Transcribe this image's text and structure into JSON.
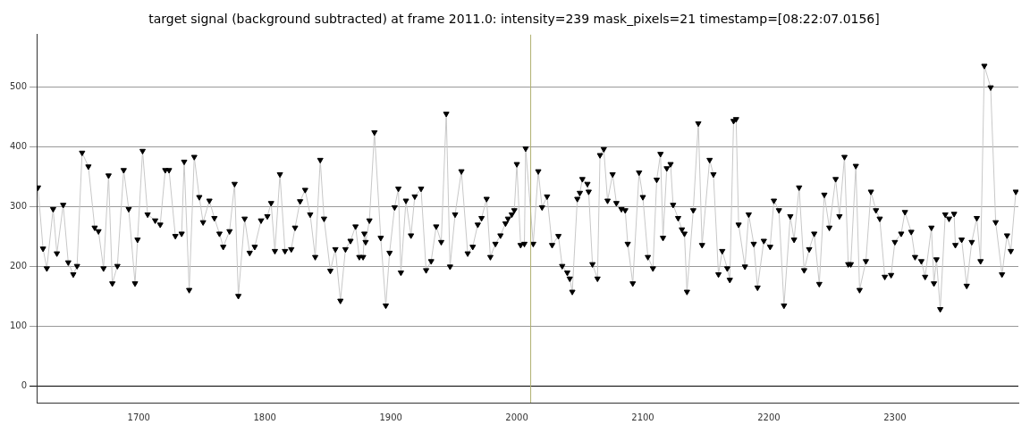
{
  "chart_data": {
    "type": "line",
    "title": "target signal (background subtracted) at frame 2011.0: intensity=239 mask_pixels=21 timestamp=[08:22:07.0156]",
    "x": [
      1620,
      1624,
      1627,
      1632,
      1635,
      1640,
      1644,
      1648,
      1651,
      1655,
      1660,
      1665,
      1668,
      1672,
      1676,
      1679,
      1683,
      1688,
      1692,
      1697,
      1699,
      1703,
      1707,
      1713,
      1717,
      1721,
      1724,
      1729,
      1734,
      1736,
      1740,
      1744,
      1748,
      1751,
      1756,
      1760,
      1764,
      1767,
      1772,
      1776,
      1779,
      1784,
      1788,
      1792,
      1797,
      1802,
      1805,
      1808,
      1812,
      1816,
      1821,
      1824,
      1828,
      1832,
      1836,
      1840,
      1844,
      1847,
      1852,
      1856,
      1860,
      1864,
      1868,
      1872,
      1875,
      1878,
      1879,
      1880,
      1883,
      1887,
      1892,
      1896,
      1899,
      1903,
      1906,
      1908,
      1912,
      1916,
      1919,
      1924,
      1928,
      1932,
      1936,
      1940,
      1944,
      1947,
      1951,
      1956,
      1961,
      1965,
      1969,
      1972,
      1976,
      1979,
      1983,
      1987,
      1991,
      1993,
      1996,
      1998,
      2000,
      2003,
      2006,
      2007,
      2013,
      2017,
      2020,
      2024,
      2028,
      2033,
      2036,
      2040,
      2042,
      2044,
      2048,
      2050,
      2052,
      2056,
      2057,
      2060,
      2064,
      2066,
      2069,
      2072,
      2076,
      2079,
      2083,
      2086,
      2088,
      2092,
      2097,
      2100,
      2104,
      2108,
      2111,
      2114,
      2116,
      2119,
      2122,
      2124,
      2128,
      2131,
      2133,
      2135,
      2140,
      2144,
      2147,
      2153,
      2156,
      2160,
      2163,
      2167,
      2169,
      2172,
      2174,
      2176,
      2181,
      2184,
      2188,
      2191,
      2196,
      2201,
      2204,
      2208,
      2212,
      2217,
      2220,
      2224,
      2228,
      2232,
      2236,
      2240,
      2244,
      2248,
      2253,
      2256,
      2260,
      2263,
      2265,
      2269,
      2272,
      2277,
      2281,
      2285,
      2288,
      2292,
      2297,
      2300,
      2305,
      2308,
      2313,
      2316,
      2321,
      2324,
      2329,
      2331,
      2333,
      2336,
      2340,
      2343,
      2347,
      2348,
      2353,
      2357,
      2361,
      2365,
      2368,
      2371,
      2376,
      2380,
      2385,
      2389,
      2392,
      2396
    ],
    "series": [
      {
        "color": "#000000",
        "values": [
          332,
          230,
          197,
          296,
          222,
          303,
          207,
          187,
          201,
          390,
          367,
          265,
          259,
          197,
          352,
          172,
          201,
          361,
          296,
          172,
          245,
          393,
          287,
          277,
          270,
          361,
          361,
          251,
          255,
          375,
          161,
          383,
          316,
          274,
          310,
          281,
          255,
          233,
          259,
          338,
          151,
          280,
          223,
          233,
          277,
          284,
          306,
          226,
          354,
          226,
          229,
          265,
          309,
          328,
          287,
          216,
          378,
          280,
          193,
          229,
          143,
          229,
          243,
          267,
          216,
          216,
          255,
          241,
          277,
          424,
          248,
          135,
          223,
          299,
          330,
          190,
          310,
          252,
          317,
          330,
          194,
          209,
          267,
          241,
          455,
          200,
          287,
          359,
          222,
          233,
          270,
          281,
          313,
          216,
          238,
          252,
          272,
          280,
          287,
          294,
          371,
          236,
          238,
          397,
          238,
          359,
          299,
          317,
          236,
          251,
          201,
          190,
          180,
          158,
          313,
          323,
          346,
          338,
          325,
          204,
          180,
          386,
          396,
          310,
          354,
          306,
          296,
          294,
          238,
          172,
          357,
          316,
          216,
          197,
          345,
          388,
          248,
          364,
          371,
          303,
          281,
          262,
          255,
          158,
          294,
          439,
          236,
          378,
          354,
          187,
          226,
          197,
          178,
          443,
          446,
          270,
          200,
          287,
          238,
          165,
          243,
          233,
          310,
          294,
          135,
          284,
          245,
          332,
          194,
          229,
          255,
          171,
          320,
          265,
          346,
          284,
          383,
          204,
          204,
          368,
          161,
          209,
          325,
          294,
          280,
          183,
          186,
          241,
          255,
          291,
          258,
          216,
          209,
          183,
          265,
          172,
          212,
          129,
          287,
          280,
          288,
          236,
          245,
          168,
          241,
          281,
          209,
          535,
          499,
          274,
          187,
          252,
          226,
          325
        ]
      }
    ],
    "xlim": [
      1619,
      2398
    ],
    "ylim": [
      -27,
      587
    ],
    "xticks": [
      1700,
      1800,
      1900,
      2000,
      2100,
      2200,
      2300
    ],
    "yticks": [
      0,
      100,
      200,
      300,
      400,
      500
    ],
    "grid": "y",
    "marker": "triangle",
    "line_style": "solid",
    "legend": false,
    "ref_lines": [
      {
        "axis": "x",
        "value": 2011,
        "color": "#b0b070"
      }
    ]
  }
}
